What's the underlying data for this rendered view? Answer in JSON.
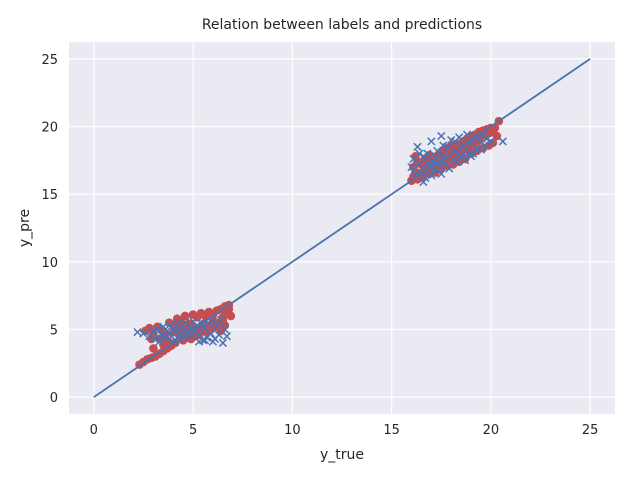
{
  "chart_data": {
    "type": "scatter",
    "title": "Relation between labels and predictions",
    "xlabel": "y_true",
    "ylabel": "y_pre",
    "xlim": [
      -1.25,
      26.25
    ],
    "ylim": [
      -1.25,
      26.25
    ],
    "xticks": [
      0,
      5,
      10,
      15,
      20,
      25
    ],
    "yticks": [
      0,
      5,
      10,
      15,
      20,
      25
    ],
    "grid": true,
    "background": "#eaeaf2",
    "series": [
      {
        "marker": "circle",
        "color": "#c44e52",
        "points": [
          [
            2.3,
            2.4
          ],
          [
            2.5,
            2.6
          ],
          [
            2.7,
            2.8
          ],
          [
            2.9,
            2.9
          ],
          [
            3.1,
            3.0
          ],
          [
            3.3,
            3.2
          ],
          [
            3.5,
            3.4
          ],
          [
            3.7,
            3.6
          ],
          [
            2.6,
            4.9
          ],
          [
            2.8,
            5.1
          ],
          [
            3.0,
            4.7
          ],
          [
            3.2,
            5.2
          ],
          [
            3.4,
            5.0
          ],
          [
            3.6,
            4.6
          ],
          [
            3.8,
            5.5
          ],
          [
            4.0,
            5.3
          ],
          [
            4.2,
            5.8
          ],
          [
            4.4,
            5.6
          ],
          [
            4.6,
            6.0
          ],
          [
            4.8,
            5.4
          ],
          [
            5.0,
            6.1
          ],
          [
            5.2,
            5.9
          ],
          [
            5.4,
            6.2
          ],
          [
            5.6,
            6.0
          ],
          [
            5.8,
            6.3
          ],
          [
            6.0,
            6.1
          ],
          [
            6.2,
            6.4
          ],
          [
            6.4,
            6.5
          ],
          [
            6.6,
            6.7
          ],
          [
            6.8,
            6.8
          ],
          [
            6.7,
            6.2
          ],
          [
            6.5,
            5.7
          ],
          [
            6.3,
            5.5
          ],
          [
            6.1,
            5.2
          ],
          [
            5.9,
            5.0
          ],
          [
            5.7,
            4.8
          ],
          [
            5.5,
            4.9
          ],
          [
            5.3,
            4.6
          ],
          [
            5.1,
            4.5
          ],
          [
            4.9,
            4.3
          ],
          [
            4.7,
            4.4
          ],
          [
            4.5,
            4.2
          ],
          [
            4.3,
            4.6
          ],
          [
            4.1,
            4.0
          ],
          [
            3.9,
            3.8
          ],
          [
            3.7,
            4.1
          ],
          [
            3.5,
            3.9
          ],
          [
            3.3,
            4.3
          ],
          [
            4.0,
            4.8
          ],
          [
            4.5,
            5.0
          ],
          [
            5.0,
            5.2
          ],
          [
            5.5,
            5.4
          ],
          [
            6.0,
            5.6
          ],
          [
            6.5,
            5.9
          ],
          [
            3.0,
            3.6
          ],
          [
            2.9,
            4.3
          ],
          [
            6.8,
            6.5
          ],
          [
            6.6,
            5.3
          ],
          [
            6.4,
            4.9
          ],
          [
            6.9,
            6.0
          ],
          [
            4.3,
            5.1
          ],
          [
            4.8,
            4.9
          ],
          [
            5.2,
            5.0
          ],
          [
            5.7,
            5.3
          ],
          [
            16.0,
            16.0
          ],
          [
            16.1,
            16.3
          ],
          [
            16.2,
            16.6
          ],
          [
            16.1,
            17.0
          ],
          [
            16.3,
            17.4
          ],
          [
            16.2,
            17.8
          ],
          [
            16.4,
            16.2
          ],
          [
            16.5,
            17.2
          ],
          [
            16.6,
            16.7
          ],
          [
            16.7,
            17.6
          ],
          [
            16.8,
            16.9
          ],
          [
            16.9,
            17.9
          ],
          [
            17.0,
            17.1
          ],
          [
            17.1,
            16.8
          ],
          [
            17.2,
            17.5
          ],
          [
            17.3,
            17.0
          ],
          [
            17.4,
            17.9
          ],
          [
            17.5,
            17.3
          ],
          [
            17.6,
            18.2
          ],
          [
            17.7,
            17.5
          ],
          [
            17.8,
            18.4
          ],
          [
            17.9,
            17.7
          ],
          [
            18.0,
            18.6
          ],
          [
            18.1,
            17.6
          ],
          [
            18.2,
            18.3
          ],
          [
            18.3,
            17.9
          ],
          [
            18.4,
            18.7
          ],
          [
            18.5,
            18.1
          ],
          [
            18.6,
            18.9
          ],
          [
            18.7,
            18.3
          ],
          [
            18.8,
            19.1
          ],
          [
            18.9,
            18.5
          ],
          [
            19.0,
            19.3
          ],
          [
            19.1,
            18.7
          ],
          [
            19.2,
            19.4
          ],
          [
            19.3,
            18.9
          ],
          [
            19.4,
            19.6
          ],
          [
            19.5,
            19.2
          ],
          [
            19.6,
            19.7
          ],
          [
            19.7,
            19.4
          ],
          [
            19.8,
            19.8
          ],
          [
            19.9,
            19.5
          ],
          [
            20.0,
            19.9
          ],
          [
            20.1,
            19.6
          ],
          [
            20.2,
            19.9
          ],
          [
            20.4,
            20.4
          ],
          [
            20.3,
            19.3
          ],
          [
            20.1,
            18.8
          ],
          [
            19.9,
            18.6
          ],
          [
            19.6,
            18.4
          ],
          [
            19.3,
            18.2
          ],
          [
            19.0,
            18.0
          ],
          [
            18.7,
            17.6
          ],
          [
            18.4,
            17.4
          ],
          [
            18.1,
            17.2
          ],
          [
            17.8,
            17.1
          ],
          [
            17.5,
            16.9
          ],
          [
            17.2,
            16.6
          ],
          [
            16.9,
            16.5
          ],
          [
            16.6,
            16.4
          ],
          [
            16.3,
            16.1
          ],
          [
            17.0,
            17.8
          ],
          [
            18.0,
            18.0
          ],
          [
            19.0,
            18.6
          ],
          [
            16.8,
            17.3
          ],
          [
            17.6,
            17.8
          ],
          [
            18.6,
            18.4
          ],
          [
            19.4,
            19.0
          ]
        ]
      },
      {
        "marker": "x",
        "color": "#4c72b0",
        "points": [
          [
            2.2,
            4.8
          ],
          [
            2.5,
            4.7
          ],
          [
            2.8,
            4.5
          ],
          [
            3.0,
            4.9
          ],
          [
            3.1,
            4.3
          ],
          [
            3.2,
            5.0
          ],
          [
            3.4,
            4.6
          ],
          [
            3.5,
            5.2
          ],
          [
            3.6,
            4.4
          ],
          [
            3.7,
            4.9
          ],
          [
            3.8,
            5.3
          ],
          [
            3.9,
            4.5
          ],
          [
            4.0,
            5.0
          ],
          [
            4.1,
            4.2
          ],
          [
            4.2,
            5.4
          ],
          [
            4.3,
            4.7
          ],
          [
            4.4,
            5.1
          ],
          [
            4.5,
            4.4
          ],
          [
            4.6,
            5.5
          ],
          [
            4.7,
            4.8
          ],
          [
            4.8,
            5.2
          ],
          [
            4.9,
            4.5
          ],
          [
            5.0,
            5.6
          ],
          [
            5.1,
            4.9
          ],
          [
            5.2,
            5.3
          ],
          [
            5.3,
            4.6
          ],
          [
            5.4,
            5.5
          ],
          [
            5.5,
            4.2
          ],
          [
            5.6,
            5.1
          ],
          [
            5.7,
            4.4
          ],
          [
            5.8,
            5.4
          ],
          [
            5.9,
            4.7
          ],
          [
            6.0,
            5.6
          ],
          [
            6.1,
            4.3
          ],
          [
            6.2,
            5.2
          ],
          [
            6.3,
            4.6
          ],
          [
            6.4,
            5.7
          ],
          [
            6.5,
            4.0
          ],
          [
            6.6,
            5.0
          ],
          [
            6.7,
            4.5
          ],
          [
            5.3,
            4.1
          ],
          [
            5.6,
            4.2
          ],
          [
            6.0,
            4.1
          ],
          [
            4.6,
            4.6
          ],
          [
            4.9,
            5.0
          ],
          [
            5.5,
            5.2
          ],
          [
            3.3,
            4.1
          ],
          [
            4.0,
            4.1
          ],
          [
            16.0,
            17.0
          ],
          [
            16.1,
            17.6
          ],
          [
            16.2,
            16.5
          ],
          [
            16.3,
            18.5
          ],
          [
            16.4,
            17.2
          ],
          [
            16.5,
            16.6
          ],
          [
            16.6,
            17.8
          ],
          [
            16.7,
            16.2
          ],
          [
            16.8,
            18.0
          ],
          [
            16.9,
            17.0
          ],
          [
            17.0,
            16.4
          ],
          [
            17.0,
            18.9
          ],
          [
            17.1,
            17.4
          ],
          [
            17.2,
            16.8
          ],
          [
            17.3,
            18.2
          ],
          [
            17.4,
            17.1
          ],
          [
            17.5,
            16.5
          ],
          [
            17.5,
            19.3
          ],
          [
            17.6,
            17.9
          ],
          [
            17.7,
            17.3
          ],
          [
            17.8,
            18.5
          ],
          [
            17.9,
            16.9
          ],
          [
            18.0,
            19.0
          ],
          [
            18.1,
            17.6
          ],
          [
            18.2,
            18.2
          ],
          [
            18.3,
            17.4
          ],
          [
            18.4,
            19.2
          ],
          [
            18.5,
            17.8
          ],
          [
            18.6,
            18.6
          ],
          [
            18.7,
            17.5
          ],
          [
            18.8,
            19.4
          ],
          [
            18.9,
            18.1
          ],
          [
            19.0,
            18.8
          ],
          [
            19.1,
            18.0
          ],
          [
            19.2,
            19.3
          ],
          [
            19.3,
            18.4
          ],
          [
            19.4,
            19.0
          ],
          [
            19.5,
            18.3
          ],
          [
            19.6,
            19.3
          ],
          [
            19.7,
            18.6
          ],
          [
            19.8,
            19.1
          ],
          [
            20.0,
            18.9
          ],
          [
            20.6,
            18.9
          ],
          [
            16.6,
            15.9
          ],
          [
            16.8,
            17.3
          ],
          [
            17.6,
            18.6
          ],
          [
            18.2,
            18.9
          ],
          [
            19.0,
            17.8
          ],
          [
            16.4,
            18.0
          ],
          [
            17.2,
            17.7
          ],
          [
            18.6,
            18.0
          ]
        ]
      },
      {
        "marker": "line",
        "color": "#4c72b0",
        "points": [
          [
            0,
            0
          ],
          [
            25,
            25
          ]
        ]
      }
    ]
  }
}
